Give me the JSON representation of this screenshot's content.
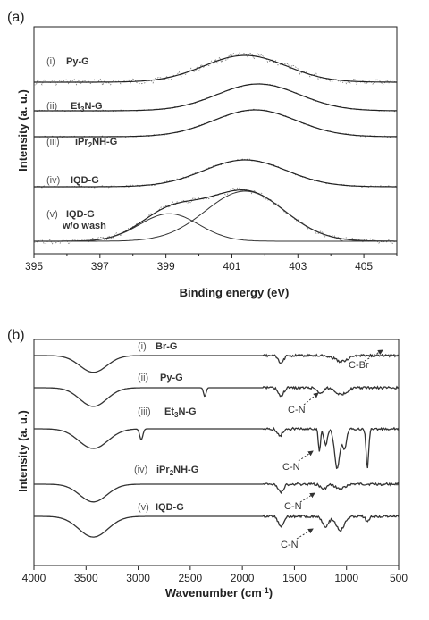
{
  "chart_data": [
    {
      "panel": "(a)",
      "type": "line",
      "xlabel": "Binding energy (eV)",
      "ylabel": "Intensity (a. u.)",
      "xlim": [
        395,
        406
      ],
      "xticks": [
        "395",
        "397",
        "399",
        "401",
        "403",
        "405"
      ],
      "series": [
        {
          "num": "(i)",
          "name": "Py-G",
          "peaks": [
            {
              "center": 401.4,
              "height": 1.0,
              "width": 1.25
            }
          ],
          "noise": 0.12
        },
        {
          "num": "(ii)",
          "name": "Et3N-G",
          "sub": "3",
          "peaks": [
            {
              "center": 401.8,
              "height": 1.0,
              "width": 1.25
            }
          ],
          "noise": 0.03
        },
        {
          "num": "(iii)",
          "name": "iPr2NH-G",
          "sub": "2",
          "peaks": [
            {
              "center": 401.7,
              "height": 1.0,
              "width": 1.25
            }
          ],
          "noise": 0.03
        },
        {
          "num": "(iv)",
          "name": "IQD-G",
          "peaks": [
            {
              "center": 401.4,
              "height": 1.0,
              "width": 1.25
            }
          ],
          "noise": 0.04
        },
        {
          "num": "(v)",
          "name": "IQD-G",
          "name2": "w/o wash",
          "peaks": [
            {
              "center": 399.1,
              "height": 0.55,
              "width": 0.9
            },
            {
              "center": 401.4,
              "height": 1.0,
              "width": 1.2
            }
          ],
          "noise": 0.05
        }
      ]
    },
    {
      "panel": "(b)",
      "type": "line",
      "xlabel": "Wavenumber (cm-1)",
      "ylabel": "Intensity (a. u.)",
      "xlim": [
        4000,
        500
      ],
      "xticks": [
        "4000",
        "3500",
        "3000",
        "2500",
        "2000",
        "1500",
        "1000",
        "500"
      ],
      "series": [
        {
          "num": "(i)",
          "name": "Br-G",
          "dips": [
            {
              "x": 3430,
              "depth": 0.85,
              "width": 130
            },
            {
              "x": 1630,
              "depth": 0.4,
              "width": 25
            },
            {
              "x": 1050,
              "depth": 0.3,
              "width": 60
            }
          ]
        },
        {
          "num": "(ii)",
          "name": "Py-G",
          "dips": [
            {
              "x": 3430,
              "depth": 0.95,
              "width": 130
            },
            {
              "x": 2360,
              "depth": 0.45,
              "width": 12
            },
            {
              "x": 1630,
              "depth": 0.45,
              "width": 25
            },
            {
              "x": 1250,
              "depth": 0.3,
              "width": 25
            },
            {
              "x": 1050,
              "depth": 0.35,
              "width": 50
            }
          ]
        },
        {
          "num": "(iii)",
          "name": "Et3N-G",
          "sub": "3",
          "dips": [
            {
              "x": 3430,
              "depth": 1.0,
              "width": 140
            },
            {
              "x": 2970,
              "depth": 0.55,
              "width": 15
            },
            {
              "x": 1640,
              "depth": 0.35,
              "width": 25
            },
            {
              "x": 1260,
              "depth": 1.2,
              "width": 10
            },
            {
              "x": 1200,
              "depth": 0.8,
              "width": 18
            },
            {
              "x": 1090,
              "depth": 2.0,
              "width": 25
            },
            {
              "x": 1020,
              "depth": 1.0,
              "width": 20
            },
            {
              "x": 800,
              "depth": 2.0,
              "width": 12
            }
          ]
        },
        {
          "num": "(iv)",
          "name": "iPr2NH-G",
          "sub": "2",
          "dips": [
            {
              "x": 3430,
              "depth": 0.9,
              "width": 130
            },
            {
              "x": 1630,
              "depth": 0.4,
              "width": 25
            },
            {
              "x": 1220,
              "depth": 0.25,
              "width": 30
            },
            {
              "x": 1060,
              "depth": 0.25,
              "width": 40
            }
          ]
        },
        {
          "num": "(v)",
          "name": "IQD-G",
          "dips": [
            {
              "x": 3430,
              "depth": 1.05,
              "width": 140
            },
            {
              "x": 1630,
              "depth": 0.5,
              "width": 25
            },
            {
              "x": 1200,
              "depth": 0.5,
              "width": 30
            },
            {
              "x": 1060,
              "depth": 0.7,
              "width": 40
            },
            {
              "x": 800,
              "depth": 0.3,
              "width": 15
            }
          ]
        }
      ],
      "annotations": [
        "C-Br",
        "C-N",
        "C-N",
        "C-N",
        "C-N"
      ]
    }
  ]
}
